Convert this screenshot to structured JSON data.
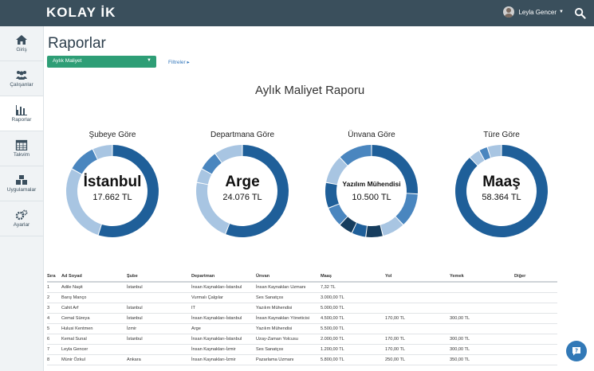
{
  "app": {
    "logo": "KOLAY İK"
  },
  "user": {
    "name": "Leyla Gencer"
  },
  "sidebar": {
    "items": [
      {
        "label": "Giriş",
        "icon": "home-icon"
      },
      {
        "label": "Çalışanlar",
        "icon": "people-icon"
      },
      {
        "label": "Raporlar",
        "icon": "bar-chart-icon"
      },
      {
        "label": "Takvim",
        "icon": "calendar-icon"
      },
      {
        "label": "Uygulamalar",
        "icon": "cubes-icon"
      },
      {
        "label": "Ayarlar",
        "icon": "gears-icon"
      }
    ]
  },
  "page": {
    "title": "Raporlar",
    "report_select": "Aylık Maliyet",
    "filters_link": "Filtreler ▸",
    "report_title": "Aylık Maliyet Raporu"
  },
  "colors": {
    "topbar": "#3a4f5c",
    "accent_green": "#2e9e76",
    "chart_dark": "#1f5f99",
    "chart_mid": "#4a86bf",
    "chart_light": "#a8c5e2",
    "chart_navy": "#163d5e"
  },
  "chart_data": [
    {
      "type": "pie",
      "title": "Şubeye Göre",
      "center_label": "İstanbul",
      "center_value": "17.662 TL",
      "slices": [
        {
          "label": "İstanbul",
          "value": 17662
        }
      ],
      "other_share": [
        0.28,
        0.1,
        0.07
      ]
    },
    {
      "type": "pie",
      "title": "Departmana Göre",
      "center_label": "Arge",
      "center_value": "24.076 TL",
      "slices": [
        {
          "label": "Arge",
          "value": 24076
        }
      ],
      "other_share": [
        0.22,
        0.05,
        0.07,
        0.1
      ]
    },
    {
      "type": "pie",
      "title": "Ünvana Göre",
      "center_label": "Yazılım Mühendisi",
      "center_value": "10.500 TL",
      "slices": [
        {
          "label": "Yazılım Mühendisi",
          "value": 10500
        }
      ],
      "other_share": [
        0.12,
        0.08,
        0.06,
        0.05,
        0.05,
        0.07,
        0.09,
        0.1,
        0.12
      ]
    },
    {
      "type": "pie",
      "title": "Türe Göre",
      "center_label": "Maaş",
      "center_value": "58.364 TL",
      "slices": [
        {
          "label": "Maaş",
          "value": 58364
        }
      ],
      "other_share": [
        0.04,
        0.03,
        0.05
      ]
    }
  ],
  "table": {
    "headers": [
      "Sıra",
      "Ad Soyad",
      "Şube",
      "Departman",
      "Ünvan",
      "Maaş",
      "Yol",
      "Yemek",
      "Diğer"
    ],
    "rows": [
      [
        "1",
        "Adile Naşit",
        "İstanbul",
        "İnsan Kaynakları-İstanbul",
        "İnsan Kaynakları Uzmanı",
        "7,32 TL",
        "",
        "",
        ""
      ],
      [
        "2",
        "Barış Manço",
        "",
        "Vurmalı Çalgılar",
        "Ses Sanatçısı",
        "3.000,00 TL",
        "",
        "",
        ""
      ],
      [
        "3",
        "Cahit Arf",
        "İstanbul",
        "IT",
        "Yazılım Mühendisi",
        "5.000,00 TL",
        "",
        "",
        ""
      ],
      [
        "4",
        "Cemal Süreya",
        "İstanbul",
        "İnsan Kaynakları-İstanbul",
        "İnsan Kaynakları Yöneticisi",
        "4.500,00 TL",
        "170,00 TL",
        "300,00 TL",
        ""
      ],
      [
        "5",
        "Hulusi Kentmen",
        "İzmir",
        "Arge",
        "Yazılım Mühendisi",
        "5.500,00 TL",
        "",
        "",
        ""
      ],
      [
        "6",
        "Kemal Sunal",
        "İstanbul",
        "İnsan Kaynakları-İstanbul",
        "Uzay-Zaman Yolcusu",
        "2.000,00 TL",
        "170,00 TL",
        "300,00 TL",
        ""
      ],
      [
        "7",
        "Leyla Gencer",
        "",
        "İnsan Kaynakları-İzmir",
        "Ses Sanatçısı",
        "1.200,00 TL",
        "170,00 TL",
        "300,00 TL",
        ""
      ],
      [
        "8",
        "Münir Özkul",
        "Ankara",
        "İnsan Kaynakları-İzmir",
        "Pazarlama Uzmanı",
        "5.800,00 TL",
        "250,00 TL",
        "350,00 TL",
        ""
      ]
    ]
  }
}
